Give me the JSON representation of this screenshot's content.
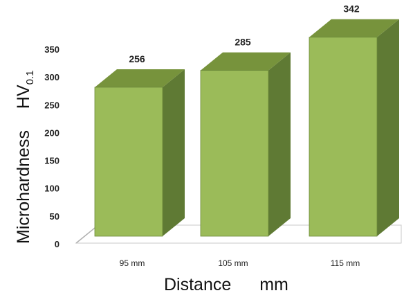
{
  "chart_data": {
    "type": "bar",
    "categories": [
      "95 mm",
      "105 mm",
      "115 mm"
    ],
    "values": [
      256,
      285,
      342
    ],
    "data_labels": [
      "256",
      "285",
      "342"
    ],
    "title": "",
    "xlabel": "Distance",
    "xunit": "mm",
    "ylabel": "Microhardness",
    "yunit_main": "HV",
    "yunit_sub": "0.1",
    "ylim": [
      0,
      350
    ],
    "yticks": [
      "0",
      "50",
      "100",
      "150",
      "200",
      "250",
      "300",
      "350"
    ],
    "grid": false,
    "legend": "none",
    "style": "3d-column",
    "colors": {
      "front": "#9bbb59",
      "side": "#5f7a34",
      "top": "#77933c",
      "outline": "#6b8a3a",
      "floor": "#c8c8c8"
    }
  }
}
